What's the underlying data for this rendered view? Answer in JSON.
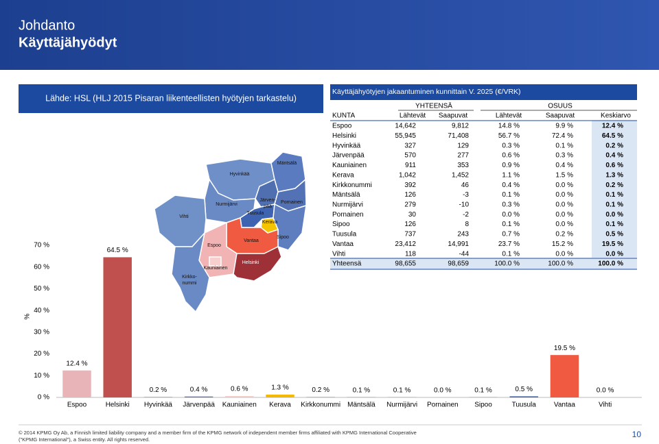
{
  "header": {
    "title": "Johdanto",
    "subtitle": "Käyttäjähyödyt"
  },
  "source": "Lähde: HSL (HLJ 2015 Pisaran liikenteellisten hyötyjen tarkastelu)",
  "map": {
    "labels": [
      {
        "lines": [
          "Hyvinkää"
        ]
      },
      {
        "lines": [
          "Mäntsälä"
        ]
      },
      {
        "lines": [
          "Nurmijärvi"
        ]
      },
      {
        "lines": [
          "Järven-",
          "pää"
        ]
      },
      {
        "lines": [
          "Pornainen"
        ]
      },
      {
        "lines": [
          "Tuusula"
        ]
      },
      {
        "lines": [
          "Kerava"
        ]
      },
      {
        "lines": [
          "Vihti"
        ]
      },
      {
        "lines": [
          "Sipoo"
        ]
      },
      {
        "lines": [
          "Vantaa"
        ]
      },
      {
        "lines": [
          "Espoo"
        ]
      },
      {
        "lines": [
          "Helsinki"
        ]
      },
      {
        "lines": [
          "Kauniainen"
        ]
      },
      {
        "lines": [
          "Kirkko-",
          "nummi"
        ]
      }
    ]
  },
  "table": {
    "title": "Käyttäjähyötyjen jakaantuminen kunnittain V. 2025 (€/VRK)",
    "groups": [
      "YHTEENSÄ",
      "OSUUS"
    ],
    "columns": [
      "KUNTA",
      "Lähtevät",
      "Saapuvat",
      "Lähtevät",
      "Saapuvat",
      "Keskiarvo"
    ],
    "rows": [
      [
        "Espoo",
        "14,642",
        "9,812",
        "14.8 %",
        "9.9 %",
        "12.4 %"
      ],
      [
        "Helsinki",
        "55,945",
        "71,408",
        "56.7 %",
        "72.4 %",
        "64.5 %"
      ],
      [
        "Hyvinkää",
        "327",
        "129",
        "0.3 %",
        "0.1 %",
        "0.2 %"
      ],
      [
        "Järvenpää",
        "570",
        "277",
        "0.6 %",
        "0.3 %",
        "0.4 %"
      ],
      [
        "Kauniainen",
        "911",
        "353",
        "0.9 %",
        "0.4 %",
        "0.6 %"
      ],
      [
        "Kerava",
        "1,042",
        "1,452",
        "1.1 %",
        "1.5 %",
        "1.3 %"
      ],
      [
        "Kirkkonummi",
        "392",
        "46",
        "0.4 %",
        "0.0 %",
        "0.2 %"
      ],
      [
        "Mäntsälä",
        "126",
        "-3",
        "0.1 %",
        "0.0 %",
        "0.1 %"
      ],
      [
        "Nurmijärvi",
        "279",
        "-10",
        "0.3 %",
        "0.0 %",
        "0.1 %"
      ],
      [
        "Pornainen",
        "30",
        "-2",
        "0.0 %",
        "0.0 %",
        "0.0 %"
      ],
      [
        "Sipoo",
        "126",
        "8",
        "0.1 %",
        "0.0 %",
        "0.1 %"
      ],
      [
        "Tuusula",
        "737",
        "243",
        "0.7 %",
        "0.2 %",
        "0.5 %"
      ],
      [
        "Vantaa",
        "23,412",
        "14,991",
        "23.7 %",
        "15.2 %",
        "19.5 %"
      ],
      [
        "Vihti",
        "118",
        "-44",
        "0.1 %",
        "0.0 %",
        "0.0 %"
      ],
      [
        "Yhteensä",
        "98,655",
        "98,659",
        "100.0 %",
        "100.0 %",
        "100.0 %"
      ]
    ]
  },
  "chart_data": {
    "type": "bar",
    "y_label": "%",
    "categories": [
      "Espoo",
      "Helsinki",
      "Hyvinkää",
      "Järvenpää",
      "Kauniainen",
      "Kerava",
      "Kirkkonummi",
      "Mäntsälä",
      "Nurmijärvi",
      "Pornainen",
      "Sipoo",
      "Tuusula",
      "Vantaa",
      "Vihti"
    ],
    "values": [
      12.4,
      64.5,
      0.2,
      0.4,
      0.6,
      1.3,
      0.2,
      0.1,
      0.1,
      0.0,
      0.1,
      0.5,
      19.5,
      0.0
    ],
    "value_labels": [
      "12.4 %",
      "64.5 %",
      "0.2 %",
      "0.4 %",
      "0.6 %",
      "1.3 %",
      "0.2 %",
      "0.1 %",
      "0.1 %",
      "0.0 %",
      "0.1 %",
      "0.5 %",
      "19.5 %",
      "0.0 %"
    ],
    "colors": [
      "#e8b4b8",
      "#c0504d",
      "#6f8fc9",
      "#4f6fb0",
      "#f4c7c3",
      "#f5b800",
      "#7a9ad0",
      "#5a7bbf",
      "#6a8ac6",
      "#5272b5",
      "#5e7ec0",
      "#3e63b0",
      "#f05a40",
      "#7090c8"
    ],
    "ylim": [
      0,
      70
    ],
    "yticks": [
      {
        "value": 0,
        "label": "0 %"
      },
      {
        "value": 10,
        "label": "10 %"
      },
      {
        "value": 20,
        "label": "20 %"
      },
      {
        "value": 30,
        "label": "30 %"
      },
      {
        "value": 40,
        "label": "40 %"
      },
      {
        "value": 50,
        "label": "50 %"
      },
      {
        "value": 60,
        "label": "60 %"
      },
      {
        "value": 70,
        "label": "70 %"
      }
    ]
  },
  "footer": {
    "lines": [
      "© 2014 KPMG Oy Ab, a Finnish limited liability company and a member firm of the KPMG network of independent member firms affiliated with KPMG International Cooperative",
      "(\"KPMG International\"), a Swiss entity. All rights reserved."
    ],
    "page": "10"
  }
}
